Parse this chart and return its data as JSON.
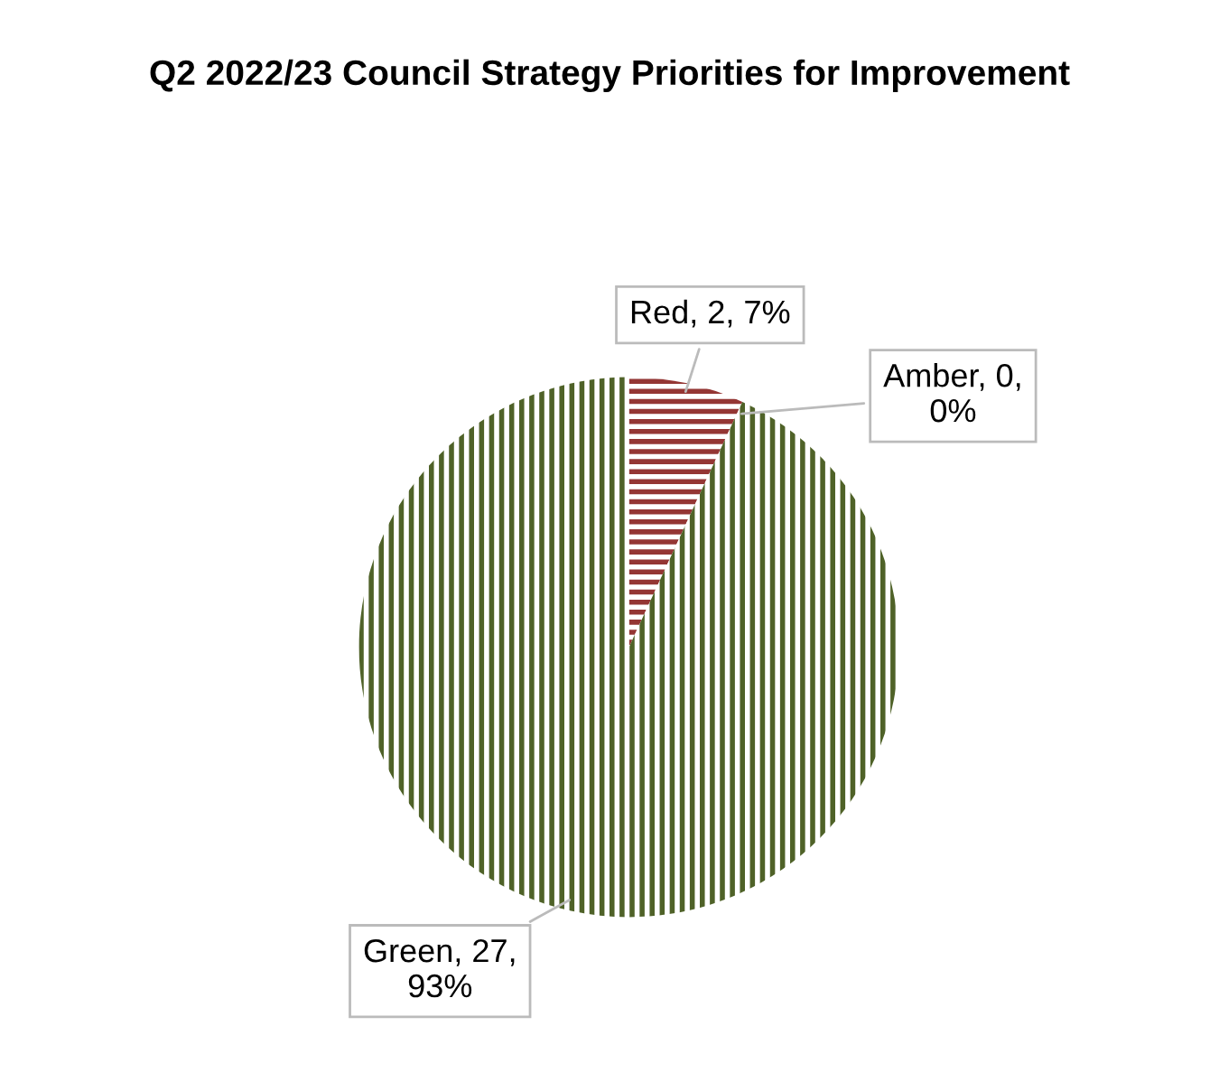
{
  "chart_data": {
    "type": "pie",
    "title": "Q2 2022/23 Council Strategy Priorities for Improvement",
    "categories": [
      "Red",
      "Amber",
      "Green"
    ],
    "values": [
      2,
      0,
      27
    ],
    "colors": [
      "#943634",
      "#e0a030",
      "#4f6228"
    ],
    "value_labels": [
      "2, 7%",
      "0, 0%",
      "27, 93%"
    ]
  }
}
